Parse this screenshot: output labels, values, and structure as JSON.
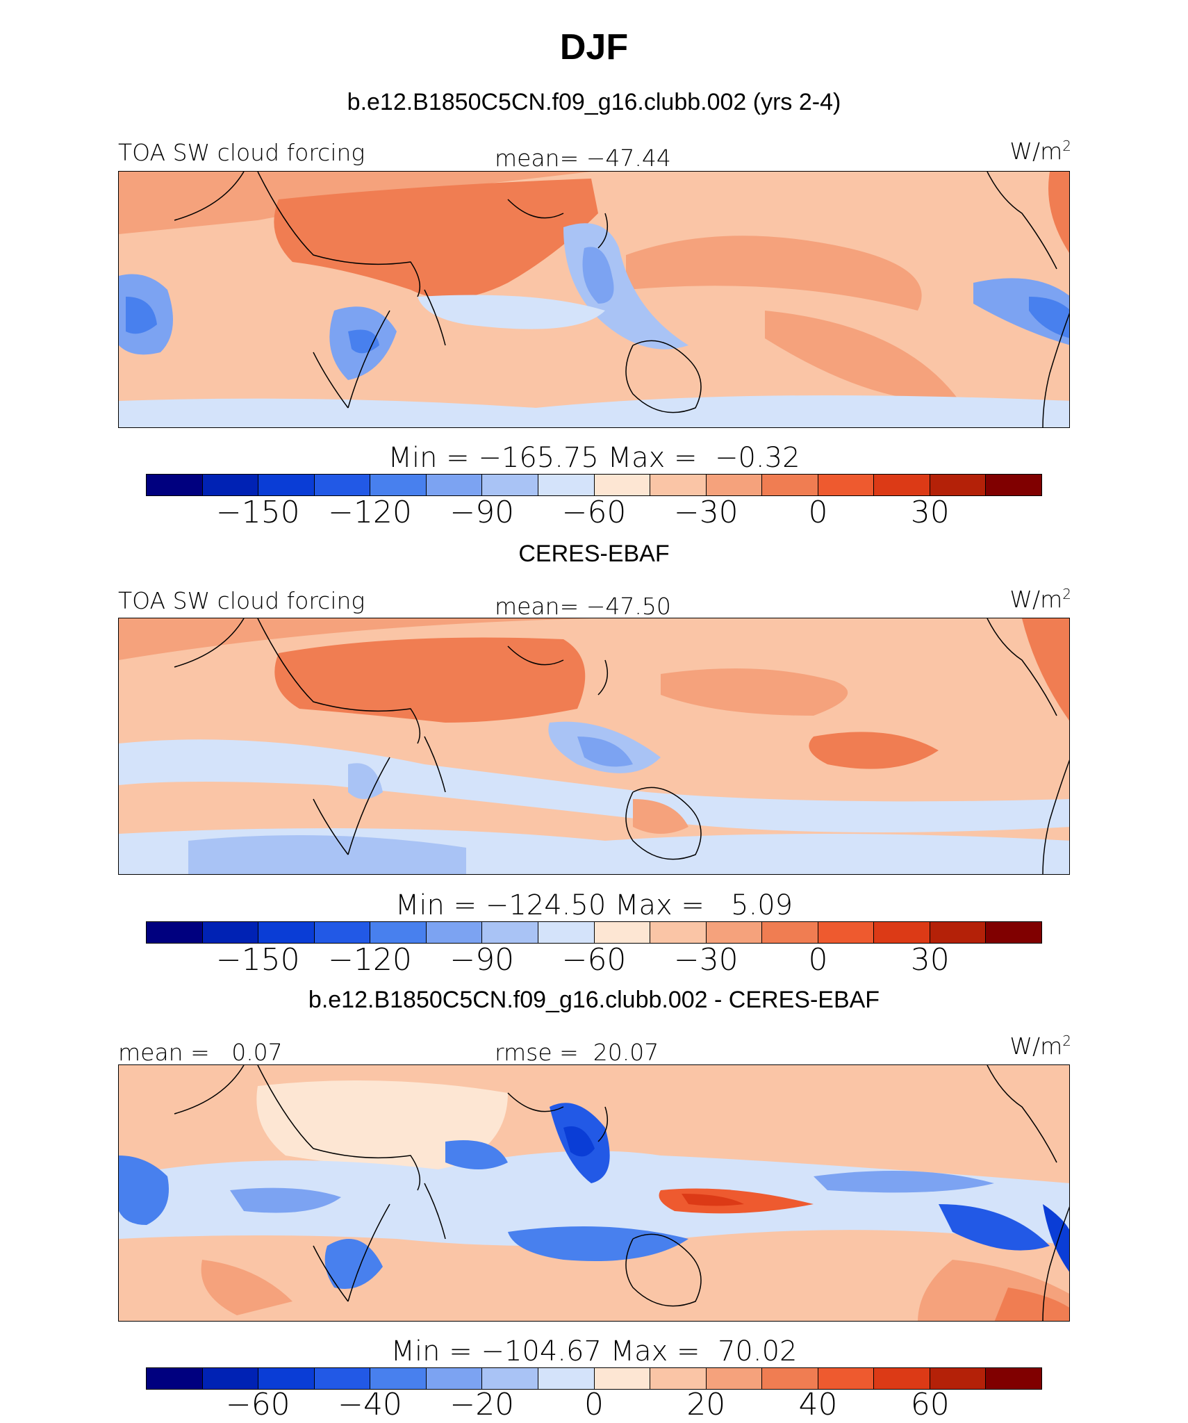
{
  "page": {
    "season": "DJF",
    "colors": [
      "#00007f",
      "#0022b4",
      "#0a3dd6",
      "#2259e6",
      "#4880ee",
      "#7ca3f2",
      "#a9c3f5",
      "#d4e3fa",
      "#fde6d3",
      "#fac5a6",
      "#f5a27c",
      "#f07d52",
      "#ee5a2f",
      "#dc3a16",
      "#b42108",
      "#800000"
    ]
  },
  "panels": [
    {
      "title": "b.e12.B1850C5CN.f09_g16.clubb.002 (yrs 2-4)",
      "left_label": "TOA SW cloud forcing",
      "center_label": "mean= −47.44",
      "units": "W/m",
      "units_sup": "2",
      "minmax": "Min = −165.75 Max =  −0.32",
      "ticks": [
        "−150",
        "−120",
        "−90",
        "−60",
        "−30",
        "0",
        "30"
      ]
    },
    {
      "title": "CERES-EBAF",
      "left_label": "TOA SW cloud forcing",
      "center_label": "mean= −47.50",
      "units": "W/m",
      "units_sup": "2",
      "minmax": "Min = −124.50 Max =   5.09",
      "ticks": [
        "−150",
        "−120",
        "−90",
        "−60",
        "−30",
        "0",
        "30"
      ]
    },
    {
      "title": "b.e12.B1850C5CN.f09_g16.clubb.002 - CERES-EBAF",
      "left_label": "mean =   0.07",
      "center_label": "rmse =  20.07",
      "units": "W/m",
      "units_sup": "2",
      "minmax": "Min = −104.67 Max =  70.02",
      "ticks": [
        "−60",
        "−40",
        "−20",
        "0",
        "20",
        "40",
        "60"
      ]
    }
  ]
}
